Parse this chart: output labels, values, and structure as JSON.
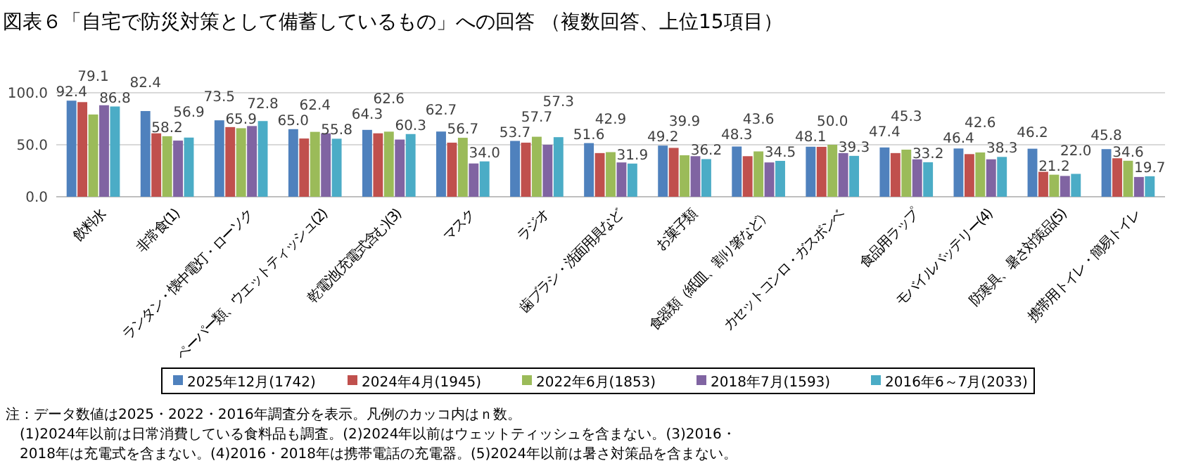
{
  "chart_data": {
    "type": "bar",
    "title": "図表６「自宅で防災対策として備蓄しているもの」への回答 （複数回答、上位15項目）",
    "categories": [
      "飲料水",
      "非常食(1)",
      "ランタン・懐中電灯・ローソク",
      "ペーパー類、ウエットティッシュ(2)",
      "乾電池(充電式含む)(3)",
      "マスク",
      "ラジオ",
      "歯ブラシ・洗面用具など",
      "お菓子類",
      "食器類（紙皿、割り箸など）",
      "カセットコンロ・ガスボンベ",
      "食品用ラップ",
      "モバイルバッテリー(4)",
      "防寒具、暑さ対策品(5)",
      "携帯用トイレ・簡易トイレ"
    ],
    "series": [
      {
        "name": "2025年12月(1742)",
        "color": "#4f81bd",
        "values": [
          92.4,
          82.4,
          73.5,
          65.0,
          64.3,
          62.7,
          53.7,
          51.6,
          49.2,
          48.3,
          48.1,
          47.4,
          46.4,
          46.2,
          45.8
        ],
        "value_labels": [
          "92.4",
          "82.4",
          "73.5",
          "65.0",
          "64.3",
          "62.7",
          "53.7",
          "51.6",
          "49.2",
          "48.3",
          "48.1",
          "47.4",
          "46.4",
          "46.2",
          "45.8"
        ]
      },
      {
        "name": "2024年4月(1945)",
        "color": "#c0504d",
        "values": [
          91,
          61,
          67,
          56,
          61,
          52,
          52,
          42,
          47,
          39,
          48,
          42,
          41,
          24,
          37
        ]
      },
      {
        "name": "2022年6月(1853)",
        "color": "#9bbb59",
        "values": [
          79.1,
          58.2,
          65.9,
          62.4,
          62.6,
          56.7,
          57.7,
          42.9,
          39.9,
          43.6,
          50.0,
          45.3,
          42.6,
          21.2,
          34.6
        ],
        "value_labels": [
          "79.1",
          "58.2",
          "65.9",
          "62.4",
          "62.6",
          "56.7",
          "57.7",
          "42.9",
          "39.9",
          "43.6",
          "50.0",
          "45.3",
          "42.6",
          "21.2",
          "34.6"
        ]
      },
      {
        "name": "2018年7月(1593)",
        "color": "#8064a2",
        "values": [
          88,
          54,
          68,
          61,
          55,
          32,
          50,
          33,
          39,
          33,
          42,
          36,
          36,
          20,
          19
        ]
      },
      {
        "name": "2016年6～7月(2033)",
        "color": "#4bacc6",
        "values": [
          86.8,
          56.9,
          72.8,
          55.8,
          60.3,
          34.0,
          57.3,
          31.9,
          36.2,
          34.5,
          39.3,
          33.2,
          38.3,
          22.0,
          19.7
        ],
        "value_labels": [
          "86.8",
          "56.9",
          "72.8",
          "55.8",
          "60.3",
          "34.0",
          "57.3",
          "31.9",
          "36.2",
          "34.5",
          "39.3",
          "33.2",
          "38.3",
          "22.0",
          "19.7"
        ]
      }
    ],
    "ylim": [
      0,
      100
    ],
    "yticks": [
      {
        "value": 0,
        "label": "0.0"
      },
      {
        "value": 50,
        "label": "50.0"
      },
      {
        "value": 100,
        "label": "100.0"
      }
    ],
    "grid": "y",
    "legend": "bottom",
    "annotations": [
      "注：データ数値は2025・2022・2016年調査分を表示。凡例のカッコ内はｎ数。",
      "(1)2024年以前は日常消費している食料品も調査。(2)2024年以前はウェットティッシュを含まない。(3)2016・2018年は充電式を含まない。(4)2016・2018年は携帯電話の充電器。(5)2024年以前は暑さ対策品を含まない。"
    ]
  }
}
